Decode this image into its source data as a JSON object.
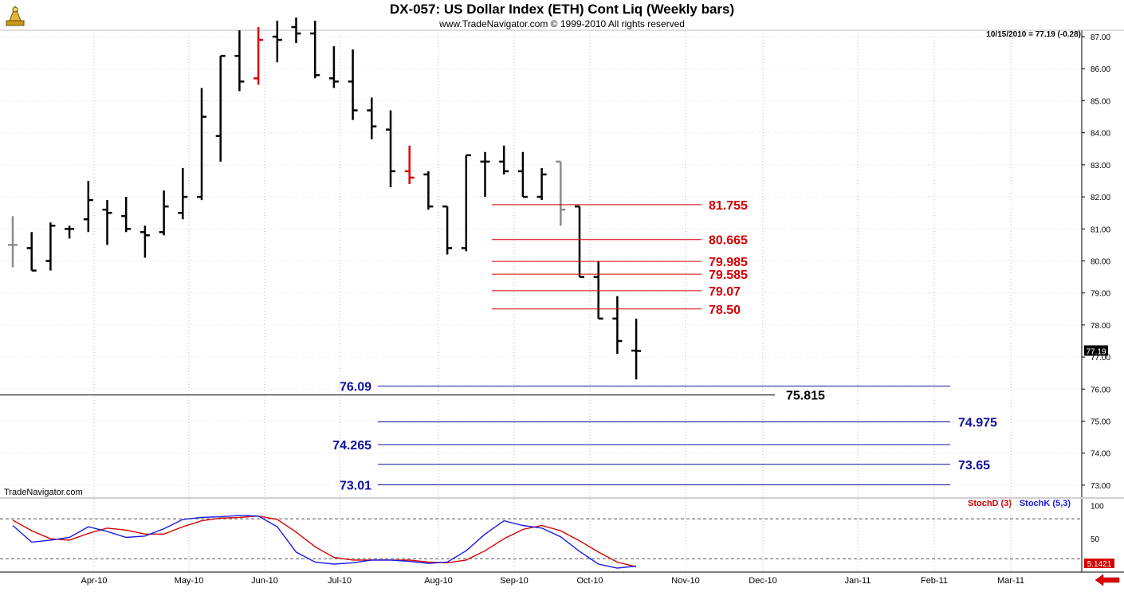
{
  "header": {
    "title": "DX-057:  US Dollar Index (ETH) Cont Liq  (Weekly bars)",
    "subtitle": "www.TradeNavigator.com © 1999-2010 All rights reserved",
    "last_bar_readout": "10/15/2010 = 77.19 (-0.28)",
    "watermark": "TradeNavigator.com"
  },
  "colors": {
    "up_bar": "#000000",
    "neutral_bar": "#8c8c8c",
    "highlight_bar": "#e00000",
    "resistance_line": "#d40000",
    "support_line": "#1010a0",
    "key_line": "#000000",
    "stoch_d": "#d40000",
    "stoch_k": "#1a1ae6"
  },
  "chart_data": [
    {
      "type": "ohlc",
      "title": "US Dollar Index (ETH) Cont Liq (Weekly bars)",
      "ylim": [
        72.6,
        87.2
      ],
      "y_ticks": [
        "87.00",
        "86.00",
        "85.00",
        "84.00",
        "83.00",
        "82.00",
        "81.00",
        "80.00",
        "79.00",
        "78.00",
        "77.00",
        "76.00",
        "75.00",
        "74.00",
        "73.00"
      ],
      "x_ticks": [
        "Apr-10",
        "May-10",
        "Jun-10",
        "Jul-10",
        "Aug-10",
        "Sep-10",
        "Oct-10",
        "Nov-10",
        "Dec-10",
        "Jan-11",
        "Feb-11",
        "Mar-11"
      ],
      "last_price_label": "77.19",
      "bars": [
        {
          "o": 80.5,
          "h": 81.4,
          "l": 79.8,
          "c": 80.5,
          "color": "neutral"
        },
        {
          "o": 80.4,
          "h": 80.9,
          "l": 79.7,
          "c": 79.7,
          "color": "up"
        },
        {
          "o": 80.0,
          "h": 81.2,
          "l": 79.7,
          "c": 81.1,
          "color": "up"
        },
        {
          "o": 81.0,
          "h": 81.1,
          "l": 80.7,
          "c": 81.0,
          "color": "up"
        },
        {
          "o": 81.3,
          "h": 82.5,
          "l": 80.9,
          "c": 81.9,
          "color": "up"
        },
        {
          "o": 81.6,
          "h": 81.9,
          "l": 80.5,
          "c": 81.5,
          "color": "up"
        },
        {
          "o": 81.4,
          "h": 82.0,
          "l": 80.9,
          "c": 81.0,
          "color": "up"
        },
        {
          "o": 80.9,
          "h": 81.1,
          "l": 80.1,
          "c": 80.8,
          "color": "up"
        },
        {
          "o": 80.9,
          "h": 82.2,
          "l": 80.8,
          "c": 81.7,
          "color": "up"
        },
        {
          "o": 81.5,
          "h": 82.9,
          "l": 81.3,
          "c": 82.0,
          "color": "up"
        },
        {
          "o": 82.0,
          "h": 85.4,
          "l": 81.9,
          "c": 84.5,
          "color": "up"
        },
        {
          "o": 83.9,
          "h": 86.4,
          "l": 83.1,
          "c": 86.4,
          "color": "up"
        },
        {
          "o": 86.4,
          "h": 87.2,
          "l": 85.3,
          "c": 85.6,
          "color": "up"
        },
        {
          "o": 85.7,
          "h": 87.3,
          "l": 85.5,
          "c": 86.9,
          "color": "highlight"
        },
        {
          "o": 87.0,
          "h": 87.5,
          "l": 86.2,
          "c": 86.9,
          "color": "up"
        },
        {
          "o": 87.3,
          "h": 87.6,
          "l": 86.8,
          "c": 87.1,
          "color": "up"
        },
        {
          "o": 87.1,
          "h": 87.5,
          "l": 85.7,
          "c": 85.8,
          "color": "up"
        },
        {
          "o": 85.7,
          "h": 86.7,
          "l": 85.4,
          "c": 85.6,
          "color": "up"
        },
        {
          "o": 85.6,
          "h": 86.6,
          "l": 84.4,
          "c": 84.7,
          "color": "up"
        },
        {
          "o": 84.7,
          "h": 85.1,
          "l": 83.8,
          "c": 84.2,
          "color": "up"
        },
        {
          "o": 84.1,
          "h": 84.7,
          "l": 82.3,
          "c": 82.8,
          "color": "up"
        },
        {
          "o": 82.8,
          "h": 83.6,
          "l": 82.4,
          "c": 82.6,
          "color": "highlight"
        },
        {
          "o": 82.7,
          "h": 82.8,
          "l": 81.6,
          "c": 81.7,
          "color": "up"
        },
        {
          "o": 81.7,
          "h": 81.6,
          "l": 80.2,
          "c": 80.4,
          "color": "up"
        },
        {
          "o": 80.4,
          "h": 83.3,
          "l": 80.3,
          "c": 83.3,
          "color": "up"
        },
        {
          "o": 83.1,
          "h": 83.4,
          "l": 82.0,
          "c": 83.1,
          "color": "up"
        },
        {
          "o": 83.1,
          "h": 83.6,
          "l": 82.7,
          "c": 82.8,
          "color": "up"
        },
        {
          "o": 82.8,
          "h": 83.4,
          "l": 82.0,
          "c": 82.0,
          "color": "up"
        },
        {
          "o": 82.0,
          "h": 82.9,
          "l": 81.9,
          "c": 82.7,
          "color": "up"
        },
        {
          "o": 83.1,
          "h": 83.1,
          "l": 81.1,
          "c": 81.6,
          "color": "neutral"
        },
        {
          "o": 81.7,
          "h": 81.7,
          "l": 79.5,
          "c": 79.5,
          "color": "up"
        },
        {
          "o": 79.5,
          "h": 80.0,
          "l": 78.2,
          "c": 78.2,
          "color": "up"
        },
        {
          "o": 78.2,
          "h": 78.9,
          "l": 77.1,
          "c": 77.5,
          "color": "up"
        },
        {
          "o": 77.2,
          "h": 78.2,
          "l": 76.3,
          "c": 77.19,
          "color": "up"
        }
      ],
      "levels": [
        {
          "label": "81.755",
          "value": 81.755,
          "kind": "resistance"
        },
        {
          "label": "80.665",
          "value": 80.665,
          "kind": "resistance"
        },
        {
          "label": "79.985",
          "value": 79.985,
          "kind": "resistance"
        },
        {
          "label": "79.585",
          "value": 79.585,
          "kind": "resistance"
        },
        {
          "label": "79.07",
          "value": 79.07,
          "kind": "resistance"
        },
        {
          "label": "78.50",
          "value": 78.5,
          "kind": "resistance"
        },
        {
          "label": "76.09",
          "value": 76.09,
          "kind": "support"
        },
        {
          "label": "75.815",
          "value": 75.815,
          "kind": "key"
        },
        {
          "label": "74.975",
          "value": 74.975,
          "kind": "support"
        },
        {
          "label": "74.265",
          "value": 74.265,
          "kind": "support"
        },
        {
          "label": "73.65",
          "value": 73.65,
          "kind": "support"
        },
        {
          "label": "73.01",
          "value": 73.01,
          "kind": "support"
        }
      ]
    },
    {
      "type": "line",
      "legend": [
        "StochD (3)",
        "StochK (5,3)"
      ],
      "ylim": [
        0,
        110
      ],
      "y_ticks": [
        "100",
        "50"
      ],
      "last_value_label": "5.1421",
      "series": [
        {
          "name": "StochD (3)",
          "values": [
            78,
            62,
            50,
            48,
            58,
            66,
            63,
            57,
            57,
            68,
            77,
            81,
            82,
            84,
            79,
            60,
            38,
            22,
            18,
            18,
            18,
            18,
            15,
            14,
            18,
            32,
            50,
            64,
            70,
            62,
            47,
            30,
            15,
            8
          ]
        },
        {
          "name": "StochK (5,3)",
          "values": [
            70,
            45,
            48,
            52,
            68,
            61,
            52,
            54,
            65,
            79,
            82,
            83,
            85,
            84,
            68,
            30,
            15,
            12,
            14,
            18,
            18,
            16,
            13,
            15,
            32,
            57,
            77,
            70,
            66,
            53,
            31,
            12,
            6,
            9
          ]
        }
      ]
    }
  ]
}
